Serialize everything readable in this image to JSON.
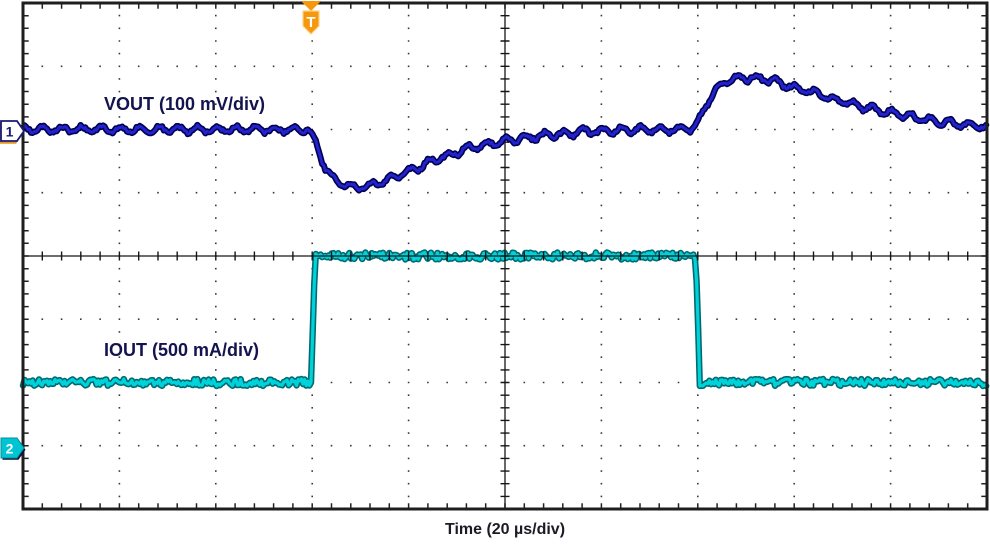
{
  "colors": {
    "background": "#ffffff",
    "plot_border": "#1e1e1e",
    "grid_dots": "#3a3a3a",
    "center_lines": "#161616",
    "border_ticks": "#222222",
    "vout_core": "#2323cd",
    "vout_edge": "#00004e",
    "iout_core": "#00d2da",
    "iout_edge": "#006a71",
    "channel1_marker_fill": "#ffffff",
    "channel1_marker_stroke": "#181878",
    "channel1_marker_shadow": "#e8951d",
    "channel2_marker_fill": "#00c4d2",
    "channel2_marker_stroke": "#008f9b",
    "channel2_marker_shadow": "#0d0d35",
    "trigger_marker": "#f6980e",
    "trigger_marker_edge": "#ffd183",
    "channel_label_text": "#13134e",
    "axis_label_text": "#1b1b26"
  },
  "chart_data": {
    "type": "line",
    "title": "",
    "xlabel": "Time (20 µs/div)",
    "x_units": "µs",
    "x_range": [
      0,
      200
    ],
    "time_per_division_us": 20,
    "grid": {
      "x_divisions": 10,
      "y_divisions": 8,
      "minors_per_division": 5,
      "style": "dotted graticule with tick-marked center crosshair and border ticks",
      "grid_on": true
    },
    "trigger": {
      "label": "T",
      "time_us": 60,
      "position_divisions_from_left": 3
    },
    "legend_position": "labels drawn inside plot next to each trace",
    "series": [
      {
        "name": "VOUT",
        "label": "VOUT (100 mV/div)",
        "channel": 1,
        "units": "mV",
        "scale_per_division": "100 mV",
        "baseline_division_from_top": 2,
        "ripple_mv_pp": 10,
        "description": "Output voltage: ~91 mV undershoot after 60 µs load step-up, recovers by ~125 µs; ~82 mV overshoot after 140 µs load release, decays toward baseline by 200 µs",
        "points": [
          [
            0,
            0
          ],
          [
            59,
            0
          ],
          [
            60.6,
            -17
          ],
          [
            62,
            -48
          ],
          [
            63.7,
            -74
          ],
          [
            65.8,
            -86
          ],
          [
            68.9,
            -91
          ],
          [
            72,
            -89
          ],
          [
            76,
            -78
          ],
          [
            81.3,
            -62
          ],
          [
            86.5,
            -45
          ],
          [
            92.7,
            -29
          ],
          [
            100,
            -18
          ],
          [
            107.3,
            -10
          ],
          [
            115.6,
            -4
          ],
          [
            123.9,
            -1
          ],
          [
            138.4,
            1
          ],
          [
            139.8,
            7
          ],
          [
            141.1,
            28
          ],
          [
            142.5,
            51
          ],
          [
            144.2,
            67
          ],
          [
            146.1,
            77
          ],
          [
            148.8,
            81
          ],
          [
            151.9,
            82
          ],
          [
            155,
            78
          ],
          [
            161.2,
            64
          ],
          [
            167.4,
            50
          ],
          [
            173.7,
            37
          ],
          [
            179.9,
            26
          ],
          [
            186.1,
            17
          ],
          [
            192.3,
            10
          ],
          [
            200,
            4
          ]
        ]
      },
      {
        "name": "IOUT",
        "label": "IOUT (500 mA/div)",
        "channel": 2,
        "units": "mA",
        "scale_per_division": "500 mA",
        "baseline_division_from_top": 6,
        "noise_ma_pp": 56,
        "description": "Load current: steps 0 → 1000 mA at 60 µs and back to 0 mA at 140 µs (2 divisions tall pulse, 4 divisions wide)",
        "points": [
          [
            0,
            0
          ],
          [
            59.8,
            0
          ],
          [
            60.6,
            1000
          ],
          [
            139.6,
            1000
          ],
          [
            140.4,
            0
          ],
          [
            200,
            0
          ]
        ]
      }
    ]
  }
}
